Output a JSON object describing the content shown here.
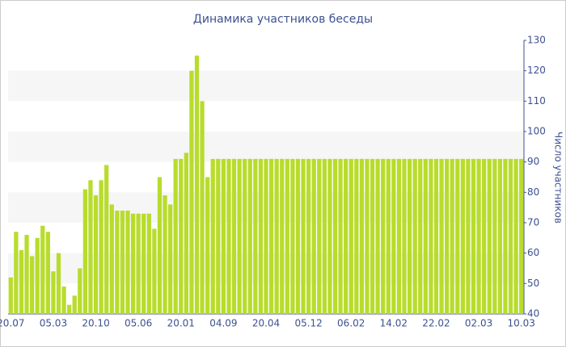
{
  "chart_data": {
    "type": "bar",
    "title": "Динамика участников беседы",
    "y_label": "Число участников",
    "categories": [
      "20.07",
      null,
      null,
      null,
      null,
      null,
      null,
      null,
      "05.03",
      null,
      null,
      null,
      null,
      null,
      null,
      null,
      "20.10",
      null,
      null,
      null,
      null,
      null,
      null,
      null,
      "05.06",
      null,
      null,
      null,
      null,
      null,
      null,
      null,
      "20.01",
      null,
      null,
      null,
      null,
      null,
      null,
      null,
      "04.09",
      null,
      null,
      null,
      null,
      null,
      null,
      null,
      "20.04",
      null,
      null,
      null,
      null,
      null,
      null,
      null,
      "05.12",
      null,
      null,
      null,
      null,
      null,
      null,
      null,
      "06.02",
      null,
      null,
      null,
      null,
      null,
      null,
      null,
      "14.02",
      null,
      null,
      null,
      null,
      null,
      null,
      null,
      "22.02",
      null,
      null,
      null,
      null,
      null,
      null,
      null,
      "02.03",
      null,
      null,
      null,
      null,
      null,
      null,
      null,
      "10.03"
    ],
    "values": [
      52,
      67,
      61,
      66,
      59,
      65,
      69,
      67,
      54,
      60,
      49,
      43,
      46,
      55,
      81,
      84,
      79,
      84,
      89,
      76,
      74,
      74,
      74,
      73,
      73,
      73,
      73,
      68,
      85,
      79,
      76,
      91,
      91,
      93,
      120,
      125,
      110,
      85,
      91,
      91,
      91,
      91,
      91,
      91,
      91,
      91,
      91,
      91,
      91,
      91,
      91,
      91,
      91,
      91,
      91,
      91,
      91,
      91,
      91,
      91,
      91,
      91,
      91,
      91,
      91,
      91,
      91,
      91,
      91,
      91,
      91,
      91,
      91,
      91,
      91,
      91,
      91,
      91,
      91,
      91,
      91,
      91,
      91,
      91,
      91,
      91,
      91,
      91,
      91,
      91,
      91,
      91,
      91,
      91,
      91,
      91,
      91
    ],
    "color": "#b8dc2c",
    "ylim": [
      40,
      130
    ],
    "yticks": [
      40,
      50,
      60,
      70,
      80,
      90,
      100,
      110,
      120,
      130
    ],
    "grid": true,
    "y_axis_side": "right"
  }
}
